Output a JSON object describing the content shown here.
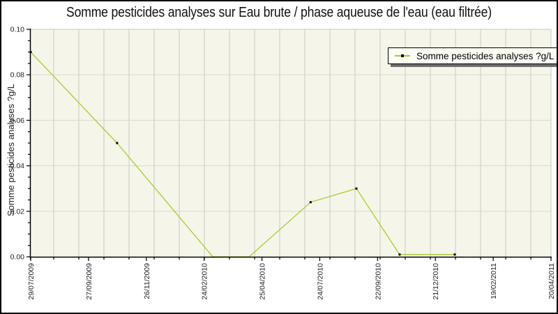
{
  "title": "Somme pesticides analyses sur Eau brute / phase aqueuse de l'eau (eau filtrée)",
  "legend": {
    "entries": [
      {
        "label": "Somme pesticides analyses ?g/L",
        "marker": "black-dot-on-line"
      }
    ]
  },
  "y_axis": {
    "label": "Somme pesticides analyses ?g/L"
  },
  "colors": {
    "line": "#a4cc2c",
    "marker": "#000000",
    "plot_background": "#f5f5ea",
    "grid_vertical": "#c9c9c2",
    "grid_horizontal": "#d9d9d0",
    "plot_border_light": "#c8c8c0",
    "axis": "#000000",
    "text": "#222222",
    "legend_background": "#fcfcf4",
    "legend_shadow": "#6e6e6e",
    "outer_border": "#000000"
  },
  "chart_data": {
    "type": "line",
    "title": "Somme pesticides analyses sur Eau brute / phase aqueuse de l'eau (eau filtrée)",
    "xlabel": "",
    "ylabel": "Somme pesticides analyses ?g/L",
    "ylim": [
      0,
      0.1
    ],
    "y_major_step": 0.02,
    "y_minor_step": 0.005,
    "y_tick_labels": [
      "0.00",
      "0.02",
      "0.04",
      "0.06",
      "0.08",
      "0.10"
    ],
    "x_tick_labels": [
      "29/07/2009",
      "27/09/2009",
      "26/11/2009",
      "24/02/2010",
      "25/04/2010",
      "24/07/2010",
      "22/09/2010",
      "21/12/2010",
      "19/02/2011",
      "20/04/2011"
    ],
    "grid": true,
    "x_minor_grid": "unlabeled vertical gridlines (~monthly)",
    "legend_position": "top-right",
    "series": [
      {
        "name": "Somme pesticides analyses ?g/L",
        "color": "#a4cc2c",
        "marker_color": "#000000",
        "points": [
          {
            "x_frac": 0.0,
            "approx_date": "29/07/2009",
            "value": 0.09,
            "marker": true
          },
          {
            "x_frac": 0.166,
            "approx_date": "28/10/2009",
            "value": 0.05,
            "marker": true
          },
          {
            "x_frac": 0.35,
            "approx_date": "07/03/2010",
            "value": 0.0,
            "marker": false
          },
          {
            "x_frac": 0.42,
            "approx_date": "10/04/2010",
            "value": 0.0,
            "marker": false
          },
          {
            "x_frac": 0.538,
            "approx_date": "12/07/2010",
            "value": 0.024,
            "marker": true
          },
          {
            "x_frac": 0.626,
            "approx_date": "30/08/2010",
            "value": 0.03,
            "marker": true
          },
          {
            "x_frac": 0.709,
            "approx_date": "28/10/2010",
            "value": 0.001,
            "marker": true
          },
          {
            "x_frac": 0.815,
            "approx_date": "12/01/2011",
            "value": 0.001,
            "marker": true
          }
        ]
      }
    ]
  }
}
